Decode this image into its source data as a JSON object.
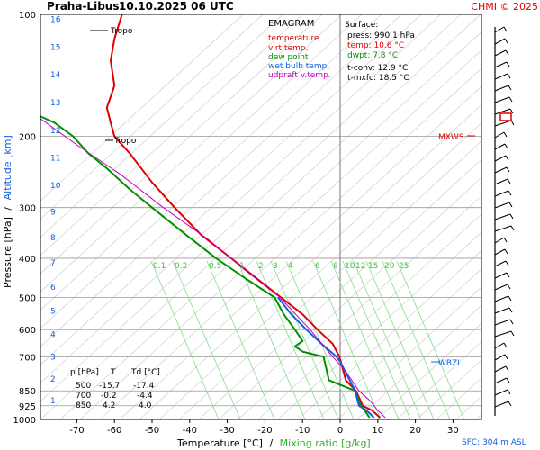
{
  "header": {
    "station": "Praha-Libus",
    "datetime": "10.10.2025 06 UTC",
    "copyright": "CHMI © 2025"
  },
  "legend": {
    "title": "EMAGRAM",
    "items": [
      {
        "label": "temperature",
        "color": "#e00000"
      },
      {
        "label": "virt.temp.",
        "color": "#e00000"
      },
      {
        "label": "dew point",
        "color": "#009000"
      },
      {
        "label": "wet bulb temp.",
        "color": "#1060e0"
      },
      {
        "label": "udpraft v.temp.",
        "color": "#c000c0"
      }
    ]
  },
  "surface": {
    "title": "Surface:",
    "press": "press: 990.1 hPa",
    "temp": "temp: 10.6 °C",
    "dwpt": "dwpt: 7.8 °C",
    "tconv": "t-conv: 12.9 °C",
    "tmxfc": "t-mxfc: 18.5 °C"
  },
  "table": {
    "headers": [
      "p [hPa]",
      "T",
      "Td [°C]"
    ],
    "rows": [
      [
        "500",
        "-15.7",
        "-17.4"
      ],
      [
        "700",
        "-0.2",
        "-4.4"
      ],
      [
        "850",
        "4.2",
        "4.0"
      ]
    ]
  },
  "labels": {
    "tropo1": "Tropo",
    "tropo2": "Tropo",
    "mxws": "MXWS",
    "wbzl": "WBZL",
    "sfc": "SFC: 304 m ASL",
    "ylabel_p": "Pressure [hPa]",
    "ylabel_sep": "/",
    "ylabel_alt": "Altitude [km]",
    "xlabel_t": "Temperature [°C]",
    "xlabel_sep": "/",
    "xlabel_mix": "Mixing ratio [g/kg]"
  },
  "chart_data": {
    "type": "line",
    "title": "Praha-Libus 10.10.2025 06 UTC",
    "xlabel": "Temperature [°C] / Mixing ratio [g/kg]",
    "ylabel": "Pressure [hPa] / Altitude [km]",
    "xlim": [
      -80,
      35
    ],
    "ylim": [
      1000,
      100
    ],
    "y_scale": "log",
    "x_ticks": [
      "-70",
      "-60",
      "-50",
      "-40",
      "-30",
      "-20",
      "-10",
      "0",
      "10",
      "20",
      "30"
    ],
    "p_ticks": [
      "100",
      "200",
      "300",
      "400",
      "500",
      "600",
      "700",
      "850",
      "925",
      "1000"
    ],
    "alt_ticks": [
      "1",
      "2",
      "3",
      "4",
      "5",
      "6",
      "7",
      "8",
      "9",
      "10",
      "11",
      "12",
      "13",
      "14",
      "15",
      "16"
    ],
    "mix_labels": [
      "0.1",
      "0.2",
      "0.5",
      "1",
      "2",
      "3",
      "4",
      "6",
      "8",
      "10",
      "12",
      "15",
      "20",
      "25"
    ],
    "series": [
      {
        "name": "temperature",
        "color": "#e00000",
        "points": [
          [
            10.6,
            990
          ],
          [
            8.5,
            950
          ],
          [
            6,
            925
          ],
          [
            4.2,
            850
          ],
          [
            1.5,
            800
          ],
          [
            -0.2,
            700
          ],
          [
            -2,
            650
          ],
          [
            -6,
            600
          ],
          [
            -10,
            550
          ],
          [
            -15.7,
            500
          ],
          [
            -22,
            450
          ],
          [
            -29,
            400
          ],
          [
            -37,
            350
          ],
          [
            -44,
            300
          ],
          [
            -50,
            260
          ],
          [
            -56,
            220
          ],
          [
            -60,
            200
          ],
          [
            -61,
            185
          ],
          [
            -62,
            170
          ],
          [
            -60,
            150
          ],
          [
            -61,
            130
          ],
          [
            -60,
            115
          ],
          [
            -58,
            100
          ]
        ]
      },
      {
        "name": "dew point",
        "color": "#009000",
        "points": [
          [
            7.8,
            990
          ],
          [
            6.5,
            950
          ],
          [
            5.5,
            925
          ],
          [
            4,
            850
          ],
          [
            -3,
            800
          ],
          [
            -4.4,
            700
          ],
          [
            -10,
            680
          ],
          [
            -12,
            660
          ],
          [
            -10,
            640
          ],
          [
            -12,
            600
          ],
          [
            -15,
            550
          ],
          [
            -17.4,
            500
          ],
          [
            -25,
            450
          ],
          [
            -33,
            400
          ],
          [
            -41,
            350
          ],
          [
            -50,
            300
          ],
          [
            -56,
            270
          ],
          [
            -62,
            240
          ],
          [
            -67,
            220
          ],
          [
            -71,
            200
          ],
          [
            -76,
            185
          ],
          [
            -80,
            178
          ]
        ]
      },
      {
        "name": "wet bulb temp.",
        "color": "#1060e0",
        "points": [
          [
            9,
            990
          ],
          [
            7,
            950
          ],
          [
            5,
            925
          ],
          [
            4,
            850
          ],
          [
            0,
            720
          ],
          [
            -1,
            700
          ],
          [
            -5,
            650
          ],
          [
            -9,
            600
          ],
          [
            -13,
            550
          ],
          [
            -16.5,
            500
          ]
        ]
      },
      {
        "name": "udpraft v.temp.",
        "color": "#c000c0",
        "points": [
          [
            12,
            990
          ],
          [
            10,
            950
          ],
          [
            8,
            900
          ],
          [
            5,
            850
          ],
          [
            1,
            750
          ],
          [
            -2,
            700
          ],
          [
            -8,
            600
          ],
          [
            -16,
            500
          ],
          [
            -25,
            430
          ],
          [
            -35,
            360
          ],
          [
            -47,
            300
          ],
          [
            -58,
            250
          ],
          [
            -70,
            210
          ],
          [
            -80,
            180
          ]
        ]
      }
    ],
    "levels": [
      {
        "name": "Tropo",
        "p": 110
      },
      {
        "name": "Tropo",
        "p": 205
      },
      {
        "name": "MXWS",
        "p": 200
      },
      {
        "name": "WBZL",
        "p": 710
      }
    ]
  }
}
